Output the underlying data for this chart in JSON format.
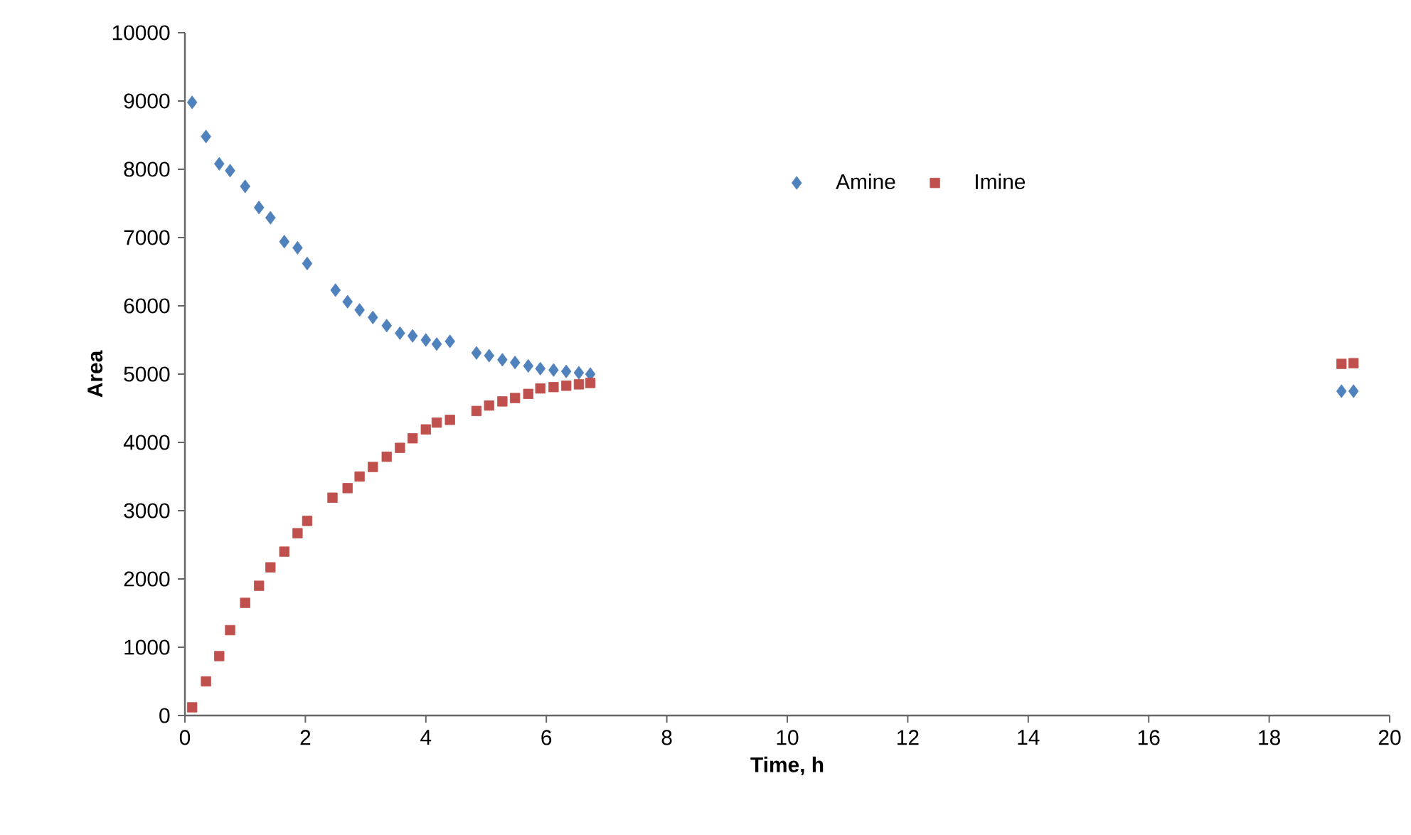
{
  "chart_data": {
    "type": "scatter",
    "xlabel": "Time, h",
    "ylabel": "Area",
    "xlim": [
      0,
      20
    ],
    "ylim": [
      0,
      10000
    ],
    "xticks": [
      0,
      2,
      4,
      6,
      8,
      10,
      12,
      14,
      16,
      18,
      20
    ],
    "yticks": [
      0,
      1000,
      2000,
      3000,
      4000,
      5000,
      6000,
      7000,
      8000,
      9000,
      10000
    ],
    "grid": false,
    "legend": "top right",
    "series": [
      {
        "name": "Amine",
        "color": "#4f81bd",
        "marker": "diamond",
        "x": [
          0.12,
          0.35,
          0.57,
          0.75,
          1.0,
          1.23,
          1.42,
          1.65,
          1.87,
          2.03,
          2.5,
          2.7,
          2.9,
          3.12,
          3.35,
          3.57,
          3.78,
          4.0,
          4.18,
          4.4,
          4.84,
          5.05,
          5.27,
          5.48,
          5.7,
          5.9,
          6.12,
          6.33,
          6.54,
          6.73,
          19.2,
          19.4
        ],
        "values": [
          8980,
          8480,
          8080,
          7980,
          7750,
          7440,
          7290,
          6940,
          6850,
          6620,
          6230,
          6060,
          5940,
          5830,
          5710,
          5600,
          5560,
          5500,
          5440,
          5480,
          5310,
          5270,
          5210,
          5170,
          5120,
          5080,
          5060,
          5040,
          5020,
          5000,
          4750,
          4750
        ]
      },
      {
        "name": "Imine",
        "color": "#c0504d",
        "marker": "square",
        "x": [
          0.12,
          0.35,
          0.57,
          0.75,
          1.0,
          1.23,
          1.42,
          1.65,
          1.87,
          2.03,
          2.45,
          2.7,
          2.9,
          3.12,
          3.35,
          3.57,
          3.78,
          4.0,
          4.18,
          4.4,
          4.84,
          5.05,
          5.27,
          5.48,
          5.7,
          5.9,
          6.12,
          6.33,
          6.54,
          6.73,
          19.2,
          19.4
        ],
        "values": [
          120,
          500,
          870,
          1250,
          1650,
          1900,
          2170,
          2400,
          2670,
          2850,
          3190,
          3330,
          3500,
          3640,
          3790,
          3920,
          4060,
          4190,
          4290,
          4330,
          4460,
          4540,
          4600,
          4650,
          4710,
          4790,
          4810,
          4830,
          4850,
          4870,
          5150,
          5160
        ]
      }
    ]
  }
}
